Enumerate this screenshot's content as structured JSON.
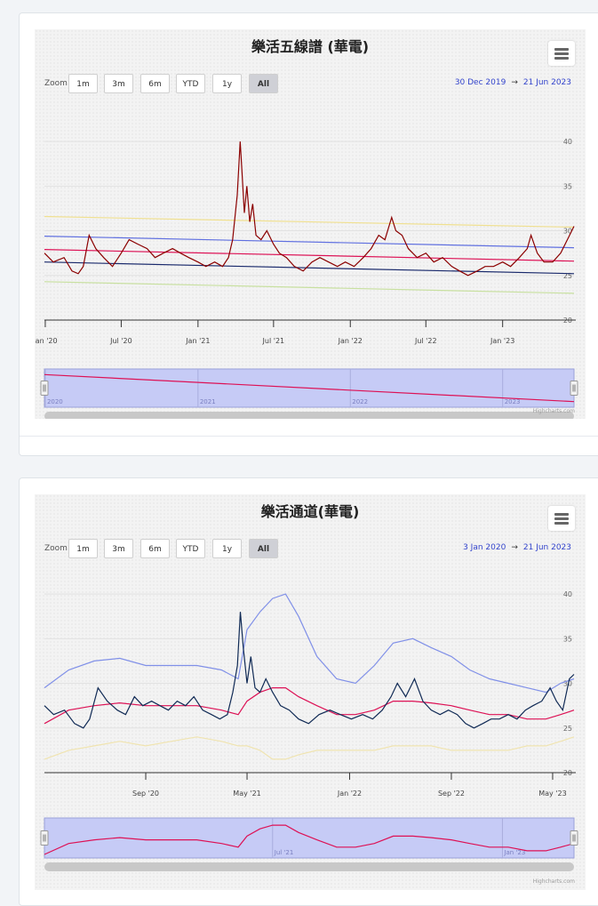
{
  "zoom": {
    "label": "Zoom",
    "buttons": [
      "1m",
      "3m",
      "6m",
      "YTD",
      "1y",
      "All"
    ],
    "active": "All"
  },
  "credit": "Highcharts.com",
  "chart_data": [
    {
      "type": "line",
      "title": "樂活五線譜 (華電)",
      "range_from": "30 Dec 2019",
      "range_to": "21 Jun 2023",
      "x_range": [
        "2019-12-30",
        "2023-06-21"
      ],
      "ylim": [
        20,
        42
      ],
      "y_ticks": [
        20,
        25,
        30,
        35,
        40
      ],
      "x_ticks": [
        {
          "date": "2020-01-01",
          "label": "Jan '20"
        },
        {
          "date": "2020-07-01",
          "label": "Jul '20"
        },
        {
          "date": "2021-01-01",
          "label": "Jan '21"
        },
        {
          "date": "2021-07-01",
          "label": "Jul '21"
        },
        {
          "date": "2022-01-01",
          "label": "Jan '22"
        },
        {
          "date": "2022-07-01",
          "label": "Jul '22"
        },
        {
          "date": "2023-01-01",
          "label": "Jan '23"
        }
      ],
      "navigator_ticks": [
        {
          "date": "2020-01-01",
          "label": "2020"
        },
        {
          "date": "2021-01-01",
          "label": "2021"
        },
        {
          "date": "2022-01-01",
          "label": "2022"
        },
        {
          "date": "2023-01-01",
          "label": "2023"
        }
      ],
      "grid": true,
      "series": [
        {
          "color": "#f0e090",
          "x": [
            "2019-12-30",
            "2023-06-21"
          ],
          "y": [
            31.6,
            30.4
          ]
        },
        {
          "color": "#6070e0",
          "x": [
            "2019-12-30",
            "2023-06-21"
          ],
          "y": [
            29.4,
            28.1
          ]
        },
        {
          "color": "#dd1155",
          "x": [
            "2019-12-30",
            "2023-06-21"
          ],
          "y": [
            27.9,
            26.6
          ]
        },
        {
          "color": "#1a2a6c",
          "x": [
            "2019-12-30",
            "2023-06-21"
          ],
          "y": [
            26.5,
            25.2
          ]
        },
        {
          "color": "#c8e0a0",
          "x": [
            "2019-12-30",
            "2023-06-21"
          ],
          "y": [
            24.3,
            23.0
          ]
        },
        {
          "color": "#8b0000",
          "x": [
            "2019-12-30",
            "2020-01-20",
            "2020-02-15",
            "2020-03-05",
            "2020-03-20",
            "2020-04-01",
            "2020-04-15",
            "2020-05-01",
            "2020-05-20",
            "2020-06-10",
            "2020-07-01",
            "2020-07-20",
            "2020-08-10",
            "2020-09-01",
            "2020-09-20",
            "2020-10-10",
            "2020-11-01",
            "2020-11-20",
            "2020-12-10",
            "2021-01-01",
            "2021-01-20",
            "2021-02-10",
            "2021-03-01",
            "2021-03-15",
            "2021-03-25",
            "2021-04-05",
            "2021-04-12",
            "2021-04-16",
            "2021-04-22",
            "2021-04-28",
            "2021-05-05",
            "2021-05-12",
            "2021-05-20",
            "2021-06-01",
            "2021-06-15",
            "2021-07-01",
            "2021-07-15",
            "2021-08-01",
            "2021-08-20",
            "2021-09-10",
            "2021-10-01",
            "2021-10-20",
            "2021-11-10",
            "2021-12-01",
            "2021-12-20",
            "2022-01-10",
            "2022-02-01",
            "2022-02-20",
            "2022-03-10",
            "2022-03-25",
            "2022-04-10",
            "2022-04-20",
            "2022-05-05",
            "2022-05-20",
            "2022-06-10",
            "2022-07-01",
            "2022-07-20",
            "2022-08-10",
            "2022-09-01",
            "2022-09-20",
            "2022-10-10",
            "2022-11-01",
            "2022-11-20",
            "2022-12-10",
            "2023-01-01",
            "2023-01-20",
            "2023-02-10",
            "2023-03-01",
            "2023-03-10",
            "2023-03-25",
            "2023-04-10",
            "2023-05-01",
            "2023-05-20",
            "2023-06-05",
            "2023-06-21"
          ],
          "y": [
            27.5,
            26.5,
            27.0,
            25.5,
            25.2,
            26.0,
            29.5,
            28.0,
            27.0,
            26.0,
            27.5,
            29.0,
            28.5,
            28.0,
            27.0,
            27.5,
            28.0,
            27.5,
            27.0,
            26.5,
            26.0,
            26.5,
            26.0,
            27.0,
            29.0,
            34.0,
            40.0,
            37.0,
            32.0,
            35.0,
            31.0,
            33.0,
            29.5,
            29.0,
            30.0,
            28.5,
            27.5,
            27.0,
            26.0,
            25.5,
            26.5,
            27.0,
            26.5,
            26.0,
            26.5,
            26.0,
            27.0,
            28.0,
            29.5,
            29.0,
            31.5,
            30.0,
            29.5,
            28.0,
            27.0,
            27.5,
            26.5,
            27.0,
            26.0,
            25.5,
            25.0,
            25.5,
            26.0,
            26.0,
            26.5,
            26.0,
            27.0,
            28.0,
            29.5,
            27.5,
            26.5,
            26.5,
            27.5,
            29.0,
            30.5
          ]
        }
      ]
    },
    {
      "type": "line",
      "title": "樂活通道(華電)",
      "range_from": "3 Jan 2020",
      "range_to": "21 Jun 2023",
      "x_range": [
        "2020-01-03",
        "2023-06-21"
      ],
      "ylim": [
        20,
        42
      ],
      "y_ticks": [
        20,
        25,
        30,
        35,
        40
      ],
      "x_ticks": [
        {
          "date": "2020-09-01",
          "label": "Sep '20"
        },
        {
          "date": "2021-05-01",
          "label": "May '21"
        },
        {
          "date": "2022-01-01",
          "label": "Jan '22"
        },
        {
          "date": "2022-09-01",
          "label": "Sep '22"
        },
        {
          "date": "2023-05-01",
          "label": "May '23"
        }
      ],
      "navigator_ticks": [
        {
          "date": "2021-07-01",
          "label": "Jul '21"
        },
        {
          "date": "2023-01-01",
          "label": "Jan '23"
        }
      ],
      "grid": true,
      "series": [
        {
          "color": "#8090e8",
          "x": [
            "2020-01-03",
            "2020-03-01",
            "2020-05-01",
            "2020-07-01",
            "2020-09-01",
            "2020-11-01",
            "2021-01-01",
            "2021-03-01",
            "2021-04-10",
            "2021-05-01",
            "2021-06-01",
            "2021-07-01",
            "2021-08-01",
            "2021-09-01",
            "2021-10-15",
            "2021-12-01",
            "2022-01-15",
            "2022-03-01",
            "2022-04-15",
            "2022-06-01",
            "2022-07-15",
            "2022-09-01",
            "2022-10-15",
            "2022-12-01",
            "2023-01-15",
            "2023-03-01",
            "2023-04-15",
            "2023-05-20",
            "2023-06-21"
          ],
          "y": [
            29.5,
            31.5,
            32.5,
            32.8,
            32.0,
            32.0,
            32.0,
            31.5,
            30.5,
            36.0,
            38.0,
            39.5,
            40.0,
            37.5,
            33.0,
            30.5,
            30.0,
            32.0,
            34.5,
            35.0,
            34.0,
            33.0,
            31.5,
            30.5,
            30.0,
            29.5,
            29.0,
            30.0,
            30.5
          ]
        },
        {
          "color": "#dd1155",
          "x": [
            "2020-01-03",
            "2020-03-01",
            "2020-05-01",
            "2020-07-01",
            "2020-09-01",
            "2020-11-01",
            "2021-01-01",
            "2021-03-01",
            "2021-04-10",
            "2021-05-01",
            "2021-06-01",
            "2021-07-01",
            "2021-08-01",
            "2021-09-01",
            "2021-10-15",
            "2021-12-01",
            "2022-01-15",
            "2022-03-01",
            "2022-04-15",
            "2022-06-01",
            "2022-07-15",
            "2022-09-01",
            "2022-10-15",
            "2022-12-01",
            "2023-01-15",
            "2023-03-01",
            "2023-04-15",
            "2023-05-20",
            "2023-06-21"
          ],
          "y": [
            25.5,
            27.0,
            27.5,
            27.8,
            27.5,
            27.5,
            27.5,
            27.0,
            26.5,
            28.0,
            29.0,
            29.5,
            29.5,
            28.5,
            27.5,
            26.5,
            26.5,
            27.0,
            28.0,
            28.0,
            27.8,
            27.5,
            27.0,
            26.5,
            26.5,
            26.0,
            26.0,
            26.5,
            27.0
          ]
        },
        {
          "color": "#f0e4b0",
          "x": [
            "2020-01-03",
            "2020-03-01",
            "2020-05-01",
            "2020-07-01",
            "2020-09-01",
            "2020-11-01",
            "2021-01-01",
            "2021-03-01",
            "2021-04-10",
            "2021-05-01",
            "2021-06-01",
            "2021-07-01",
            "2021-08-01",
            "2021-09-01",
            "2021-10-15",
            "2021-12-01",
            "2022-01-15",
            "2022-03-01",
            "2022-04-15",
            "2022-06-01",
            "2022-07-15",
            "2022-09-01",
            "2022-10-15",
            "2022-12-01",
            "2023-01-15",
            "2023-03-01",
            "2023-04-15",
            "2023-05-20",
            "2023-06-21"
          ],
          "y": [
            21.5,
            22.5,
            23.0,
            23.5,
            23.0,
            23.5,
            24.0,
            23.5,
            23.0,
            23.0,
            22.5,
            21.5,
            21.5,
            22.0,
            22.5,
            22.5,
            22.5,
            22.5,
            23.0,
            23.0,
            23.0,
            22.5,
            22.5,
            22.5,
            22.5,
            23.0,
            23.0,
            23.5,
            24.0
          ]
        },
        {
          "color": "#102a55",
          "x": [
            "2020-01-03",
            "2020-01-25",
            "2020-02-20",
            "2020-03-15",
            "2020-04-05",
            "2020-04-20",
            "2020-05-10",
            "2020-06-01",
            "2020-06-25",
            "2020-07-15",
            "2020-08-05",
            "2020-08-25",
            "2020-09-15",
            "2020-10-05",
            "2020-10-25",
            "2020-11-15",
            "2020-12-05",
            "2020-12-25",
            "2021-01-15",
            "2021-02-05",
            "2021-02-25",
            "2021-03-15",
            "2021-03-28",
            "2021-04-08",
            "2021-04-15",
            "2021-04-22",
            "2021-05-01",
            "2021-05-10",
            "2021-05-20",
            "2021-06-01",
            "2021-06-15",
            "2021-07-01",
            "2021-07-20",
            "2021-08-10",
            "2021-09-01",
            "2021-09-25",
            "2021-10-20",
            "2021-11-15",
            "2021-12-10",
            "2022-01-05",
            "2022-02-01",
            "2022-02-25",
            "2022-03-20",
            "2022-04-10",
            "2022-04-25",
            "2022-05-15",
            "2022-06-05",
            "2022-06-25",
            "2022-07-15",
            "2022-08-05",
            "2022-08-25",
            "2022-09-15",
            "2022-10-05",
            "2022-10-25",
            "2022-11-15",
            "2022-12-05",
            "2022-12-25",
            "2023-01-15",
            "2023-02-05",
            "2023-02-25",
            "2023-03-15",
            "2023-04-05",
            "2023-04-25",
            "2023-05-10",
            "2023-05-25",
            "2023-06-10",
            "2023-06-21"
          ],
          "y": [
            27.5,
            26.5,
            27.0,
            25.5,
            25.0,
            26.0,
            29.5,
            28.0,
            27.0,
            26.5,
            28.5,
            27.5,
            28.0,
            27.5,
            27.0,
            28.0,
            27.5,
            28.5,
            27.0,
            26.5,
            26.0,
            26.5,
            29.0,
            32.0,
            38.0,
            34.0,
            30.0,
            33.0,
            29.5,
            29.0,
            30.5,
            29.0,
            27.5,
            27.0,
            26.0,
            25.5,
            26.5,
            27.0,
            26.5,
            26.0,
            26.5,
            26.0,
            27.0,
            28.5,
            30.0,
            28.5,
            30.5,
            28.0,
            27.0,
            26.5,
            27.0,
            26.5,
            25.5,
            25.0,
            25.5,
            26.0,
            26.0,
            26.5,
            26.0,
            27.0,
            27.5,
            28.0,
            29.5,
            28.0,
            27.0,
            30.5,
            31.0
          ]
        }
      ]
    }
  ]
}
